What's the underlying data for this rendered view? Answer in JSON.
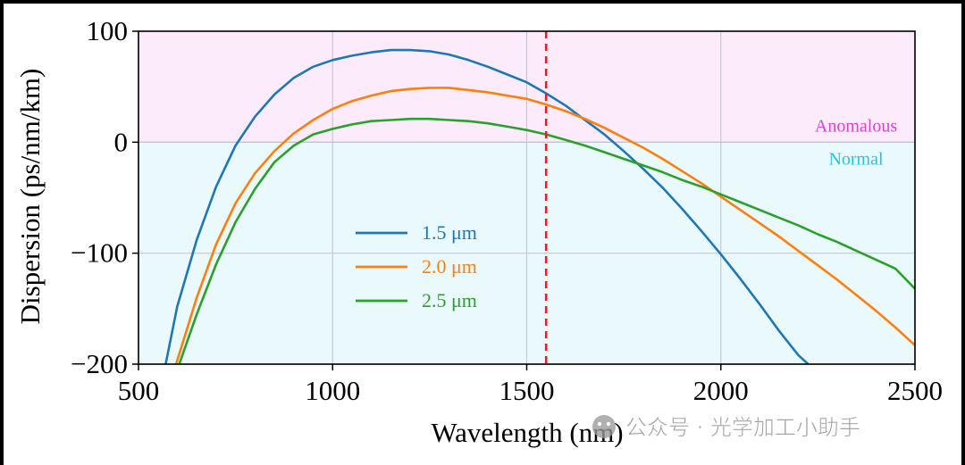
{
  "chart_data": {
    "type": "line",
    "xlabel": "Wavelength (nm)",
    "ylabel": "Dispersion (ps/nm/km)",
    "xlim": [
      500,
      2500
    ],
    "ylim": [
      -200,
      100
    ],
    "x_ticks": [
      "500",
      "1000",
      "1500",
      "2000",
      "2500"
    ],
    "y_ticks": [
      "−200",
      "−100",
      "0",
      "100"
    ],
    "grid": true,
    "legend_position": "center-left",
    "regions": {
      "anomalous": {
        "label": "Anomalous",
        "color": "#fcebfa",
        "text_color": "#e040e0"
      },
      "normal": {
        "label": "Normal",
        "color": "#e9f9fc",
        "text_color": "#22c6e6"
      }
    },
    "reference_line": {
      "x": 1550,
      "color": "#d62728",
      "style": "dashed"
    },
    "series": [
      {
        "name": "1.5 μm",
        "color": "#1f77b4",
        "x": [
          570,
          600,
          650,
          700,
          750,
          800,
          850,
          900,
          950,
          1000,
          1050,
          1100,
          1150,
          1200,
          1250,
          1300,
          1350,
          1400,
          1450,
          1500,
          1550,
          1600,
          1650,
          1700,
          1750,
          1800,
          1850,
          1900,
          1950,
          2000,
          2050,
          2100,
          2150,
          2200,
          2225
        ],
        "y": [
          -200,
          -148,
          -88,
          -40,
          -3,
          23,
          43,
          58,
          68,
          74,
          78,
          81,
          83,
          83,
          82,
          79,
          74,
          68,
          61,
          54,
          44,
          33,
          20,
          7,
          -8,
          -24,
          -41,
          -60,
          -80,
          -101,
          -123,
          -146,
          -170,
          -192,
          -200
        ]
      },
      {
        "name": "2.0 μm",
        "color": "#ff7f0e",
        "x": [
          597,
          650,
          700,
          750,
          800,
          850,
          900,
          950,
          1000,
          1050,
          1100,
          1150,
          1200,
          1250,
          1300,
          1350,
          1400,
          1450,
          1500,
          1550,
          1600,
          1650,
          1700,
          1750,
          1800,
          1850,
          1900,
          1950,
          2000,
          2050,
          2100,
          2150,
          2200,
          2250,
          2300,
          2350,
          2400,
          2450,
          2500
        ],
        "y": [
          -200,
          -140,
          -92,
          -55,
          -28,
          -8,
          8,
          20,
          30,
          37,
          42,
          46,
          48,
          49,
          49,
          47,
          45,
          42,
          39,
          34,
          28,
          21,
          13,
          4,
          -5,
          -15,
          -26,
          -37,
          -49,
          -61,
          -73,
          -85,
          -98,
          -111,
          -124,
          -138,
          -152,
          -167,
          -183
        ]
      },
      {
        "name": "2.5 μm",
        "color": "#2ca02c",
        "x": [
          605,
          650,
          700,
          750,
          800,
          850,
          900,
          950,
          1000,
          1050,
          1100,
          1150,
          1200,
          1250,
          1300,
          1350,
          1400,
          1450,
          1500,
          1550,
          1600,
          1650,
          1700,
          1750,
          1800,
          1850,
          1900,
          1950,
          2000,
          2050,
          2100,
          2150,
          2200,
          2250,
          2300,
          2350,
          2400,
          2450,
          2500
        ],
        "y": [
          -200,
          -155,
          -110,
          -72,
          -42,
          -18,
          -3,
          7,
          12,
          16,
          19,
          20,
          21,
          21,
          20,
          19,
          17,
          14,
          11,
          7,
          2,
          -3,
          -9,
          -15,
          -21,
          -27,
          -34,
          -40,
          -47,
          -54,
          -61,
          -68,
          -75,
          -83,
          -90,
          -98,
          -106,
          -114,
          -132
        ]
      }
    ]
  },
  "watermark": {
    "text": "公众号 · 光学加工小助手"
  }
}
